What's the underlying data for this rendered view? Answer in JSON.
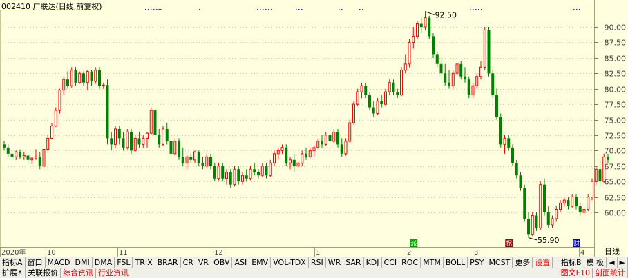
{
  "title": "002410 广联达(日线,前复权)",
  "chart_data": {
    "type": "candlestick",
    "ylim": [
      55.0,
      93.0
    ],
    "y_ticks": [
      "90.00",
      "87.50",
      "85.00",
      "82.50",
      "80.00",
      "77.50",
      "75.00",
      "72.50",
      "70.00",
      "67.50",
      "65.00",
      "62.50",
      "60.00"
    ],
    "x_tick_labels": [
      "2020年",
      "10",
      "11",
      "12",
      "1",
      "2",
      "3",
      "4"
    ],
    "annotations": {
      "high": "92.50",
      "low": "55.90"
    },
    "candles": [
      [
        71.0,
        71.6,
        70.0,
        70.5
      ],
      [
        70.5,
        71.0,
        69.0,
        69.5
      ],
      [
        69.5,
        70.0,
        68.5,
        69.0
      ],
      [
        69.0,
        70.0,
        68.5,
        69.8
      ],
      [
        69.8,
        70.2,
        68.7,
        69.0
      ],
      [
        69.0,
        69.8,
        68.5,
        69.2
      ],
      [
        69.2,
        69.5,
        68.0,
        68.5
      ],
      [
        68.5,
        69.0,
        67.8,
        68.8
      ],
      [
        68.8,
        70.2,
        68.5,
        69.0
      ],
      [
        69.0,
        69.8,
        67.0,
        67.5
      ],
      [
        67.5,
        70.5,
        67.2,
        70.2
      ],
      [
        70.2,
        72.5,
        70.0,
        72.0
      ],
      [
        72.0,
        74.5,
        71.8,
        74.0
      ],
      [
        74.0,
        77.0,
        73.8,
        76.5
      ],
      [
        76.5,
        80.0,
        76.0,
        79.8
      ],
      [
        79.8,
        82.0,
        79.0,
        81.5
      ],
      [
        81.5,
        82.8,
        80.0,
        80.5
      ],
      [
        80.5,
        83.5,
        80.2,
        83.0
      ],
      [
        83.0,
        83.5,
        80.5,
        81.0
      ],
      [
        81.0,
        82.8,
        80.8,
        82.5
      ],
      [
        82.5,
        82.8,
        80.5,
        81.0
      ],
      [
        81.0,
        83.0,
        79.8,
        82.8
      ],
      [
        82.8,
        83.0,
        80.5,
        81.2
      ],
      [
        81.2,
        83.5,
        80.8,
        83.0
      ],
      [
        83.0,
        83.5,
        80.0,
        80.5
      ],
      [
        80.5,
        81.0,
        80.0,
        80.6
      ],
      [
        80.6,
        81.5,
        71.0,
        72.0
      ],
      [
        72.0,
        73.0,
        70.0,
        71.0
      ],
      [
        71.0,
        74.0,
        70.5,
        73.5
      ],
      [
        73.5,
        74.0,
        71.0,
        72.0
      ],
      [
        72.0,
        73.0,
        70.0,
        70.5
      ],
      [
        70.5,
        73.5,
        70.2,
        73.0
      ],
      [
        73.0,
        73.5,
        69.5,
        70.0
      ],
      [
        70.0,
        72.5,
        69.8,
        72.0
      ],
      [
        72.0,
        73.0,
        70.5,
        71.0
      ],
      [
        71.0,
        72.5,
        70.5,
        72.0
      ],
      [
        72.0,
        73.0,
        70.5,
        72.8
      ],
      [
        72.8,
        77.0,
        72.5,
        76.5
      ],
      [
        76.5,
        76.8,
        72.0,
        72.5
      ],
      [
        72.5,
        73.5,
        70.5,
        71.0
      ],
      [
        71.0,
        74.0,
        70.8,
        73.5
      ],
      [
        73.5,
        74.5,
        71.0,
        71.5
      ],
      [
        71.5,
        72.0,
        69.0,
        69.5
      ],
      [
        69.5,
        72.0,
        69.2,
        71.5
      ],
      [
        71.5,
        72.0,
        68.5,
        69.0
      ],
      [
        69.0,
        70.5,
        67.5,
        68.0
      ],
      [
        68.0,
        69.5,
        67.0,
        69.0
      ],
      [
        69.0,
        69.5,
        68.0,
        68.5
      ],
      [
        68.5,
        70.0,
        68.0,
        69.8
      ],
      [
        69.8,
        70.0,
        67.5,
        68.0
      ],
      [
        68.0,
        69.0,
        67.0,
        67.5
      ],
      [
        67.5,
        69.5,
        67.2,
        69.0
      ],
      [
        69.0,
        69.5,
        67.0,
        67.5
      ],
      [
        67.5,
        68.0,
        65.0,
        65.5
      ],
      [
        65.5,
        68.0,
        65.2,
        67.5
      ],
      [
        67.5,
        68.0,
        65.0,
        65.5
      ],
      [
        65.5,
        67.0,
        64.5,
        66.5
      ],
      [
        66.5,
        67.0,
        64.0,
        64.5
      ],
      [
        64.5,
        67.5,
        64.2,
        67.0
      ],
      [
        67.0,
        67.5,
        64.5,
        65.0
      ],
      [
        65.0,
        66.5,
        64.5,
        66.0
      ],
      [
        66.0,
        67.0,
        65.0,
        65.5
      ],
      [
        65.5,
        67.5,
        65.2,
        67.0
      ],
      [
        67.0,
        68.0,
        66.0,
        66.5
      ],
      [
        66.5,
        67.0,
        65.5,
        66.0
      ],
      [
        66.0,
        68.0,
        65.8,
        67.5
      ],
      [
        67.5,
        68.0,
        65.5,
        66.0
      ],
      [
        66.0,
        68.5,
        65.8,
        68.0
      ],
      [
        68.0,
        70.0,
        67.5,
        69.5
      ],
      [
        69.5,
        70.5,
        68.5,
        70.0
      ],
      [
        70.0,
        71.0,
        69.5,
        70.5
      ],
      [
        70.5,
        71.0,
        67.5,
        68.0
      ],
      [
        68.0,
        69.0,
        67.0,
        68.5
      ],
      [
        68.5,
        69.5,
        66.5,
        67.5
      ],
      [
        67.5,
        69.0,
        67.0,
        68.0
      ],
      [
        68.0,
        70.0,
        67.5,
        69.5
      ],
      [
        69.5,
        70.5,
        68.5,
        69.0
      ],
      [
        69.0,
        70.5,
        68.8,
        70.0
      ],
      [
        70.0,
        71.0,
        69.0,
        70.5
      ],
      [
        70.5,
        72.0,
        70.2,
        71.5
      ],
      [
        71.5,
        72.5,
        70.5,
        71.0
      ],
      [
        71.0,
        73.0,
        70.8,
        72.5
      ],
      [
        72.5,
        73.0,
        71.0,
        71.5
      ],
      [
        71.5,
        73.5,
        71.2,
        73.0
      ],
      [
        73.0,
        73.5,
        70.5,
        71.0
      ],
      [
        71.0,
        72.0,
        69.0,
        69.5
      ],
      [
        69.5,
        72.0,
        69.2,
        71.5
      ],
      [
        71.5,
        75.0,
        71.2,
        74.5
      ],
      [
        74.5,
        78.0,
        74.2,
        77.5
      ],
      [
        77.5,
        80.0,
        77.2,
        79.5
      ],
      [
        79.5,
        81.0,
        78.5,
        80.5
      ],
      [
        80.5,
        81.0,
        78.5,
        79.0
      ],
      [
        79.0,
        79.5,
        76.5,
        77.0
      ],
      [
        77.0,
        78.0,
        75.5,
        76.0
      ],
      [
        76.0,
        78.5,
        75.8,
        78.0
      ],
      [
        78.0,
        79.0,
        77.0,
        77.5
      ],
      [
        77.5,
        80.0,
        77.2,
        79.5
      ],
      [
        79.5,
        81.5,
        79.0,
        81.0
      ],
      [
        81.0,
        81.5,
        79.0,
        79.5
      ],
      [
        79.5,
        80.0,
        78.5,
        79.0
      ],
      [
        79.0,
        83.5,
        78.8,
        83.0
      ],
      [
        83.0,
        85.5,
        82.5,
        84.0
      ],
      [
        84.0,
        88.0,
        83.5,
        87.5
      ],
      [
        87.5,
        90.0,
        86.5,
        88.5
      ],
      [
        88.5,
        91.0,
        88.0,
        90.5
      ],
      [
        90.5,
        91.5,
        89.0,
        90.0
      ],
      [
        90.0,
        92.5,
        89.5,
        91.5
      ],
      [
        91.5,
        91.8,
        88.0,
        88.5
      ],
      [
        88.5,
        89.0,
        85.0,
        85.5
      ],
      [
        85.5,
        86.0,
        83.5,
        84.0
      ],
      [
        84.0,
        85.0,
        82.0,
        82.5
      ],
      [
        82.5,
        84.0,
        80.5,
        81.0
      ],
      [
        81.0,
        83.0,
        80.0,
        80.5
      ],
      [
        80.5,
        83.0,
        80.0,
        82.5
      ],
      [
        82.5,
        84.5,
        82.0,
        84.0
      ],
      [
        84.0,
        84.5,
        81.5,
        82.0
      ],
      [
        82.0,
        83.5,
        81.0,
        81.5
      ],
      [
        81.5,
        82.0,
        78.5,
        79.0
      ],
      [
        79.0,
        81.0,
        78.5,
        80.5
      ],
      [
        80.5,
        82.5,
        80.0,
        82.0
      ],
      [
        82.0,
        84.5,
        81.5,
        83.5
      ],
      [
        83.5,
        90.0,
        83.0,
        89.5
      ],
      [
        89.5,
        90.0,
        82.0,
        82.5
      ],
      [
        82.5,
        83.0,
        78.5,
        79.0
      ],
      [
        79.0,
        80.0,
        75.0,
        75.5
      ],
      [
        75.5,
        76.0,
        70.5,
        71.0
      ],
      [
        71.0,
        72.5,
        69.5,
        72.0
      ],
      [
        72.0,
        72.5,
        70.0,
        70.5
      ],
      [
        70.5,
        71.0,
        67.5,
        68.0
      ],
      [
        68.0,
        68.5,
        65.5,
        66.0
      ],
      [
        66.0,
        66.5,
        63.5,
        64.0
      ],
      [
        64.0,
        64.5,
        58.5,
        59.0
      ],
      [
        59.0,
        60.0,
        55.9,
        56.5
      ],
      [
        56.5,
        60.0,
        56.2,
        59.5
      ],
      [
        59.5,
        60.0,
        57.0,
        57.5
      ],
      [
        57.5,
        65.0,
        57.2,
        64.5
      ],
      [
        64.5,
        65.5,
        59.5,
        60.0
      ],
      [
        60.0,
        61.0,
        57.5,
        58.0
      ],
      [
        58.0,
        59.5,
        57.5,
        59.0
      ],
      [
        59.0,
        61.0,
        58.5,
        60.5
      ],
      [
        60.5,
        62.0,
        60.0,
        61.5
      ],
      [
        61.5,
        62.5,
        61.0,
        62.0
      ],
      [
        62.0,
        62.5,
        60.5,
        61.0
      ],
      [
        61.0,
        63.0,
        60.8,
        62.5
      ],
      [
        62.5,
        63.0,
        60.5,
        61.0
      ],
      [
        61.0,
        61.5,
        59.5,
        60.0
      ],
      [
        60.0,
        61.0,
        59.5,
        60.5
      ],
      [
        60.5,
        63.0,
        60.2,
        62.5
      ],
      [
        62.5,
        65.5,
        62.0,
        65.0
      ],
      [
        65.0,
        67.5,
        64.5,
        67.0
      ],
      [
        67.0,
        68.5,
        64.5,
        65.0
      ],
      [
        65.0,
        69.5,
        64.8,
        69.0
      ],
      [
        69.0,
        69.5,
        68.0,
        68.5
      ]
    ],
    "markers": [
      {
        "label": "派",
        "index": 103,
        "color": "#00a000"
      },
      {
        "label": "拐",
        "index": 127,
        "color": "#a00000"
      },
      {
        "label": "财",
        "index": 144,
        "color": "#0000c0"
      }
    ]
  },
  "indicator_tabs": [
    "指标A",
    "窗口",
    "MACD",
    "DMI",
    "DMA",
    "FSL",
    "TRIX",
    "BRAR",
    "CR",
    "VR",
    "OBV",
    "ASI",
    "EMV",
    "VOL-TDX",
    "RSI",
    "WR",
    "SAR",
    "KDJ",
    "CCI",
    "ROC",
    "MTM",
    "BOLL",
    "PSY",
    "MCST",
    "更多",
    "设置"
  ],
  "indicator_tabs_right": [
    "指标B",
    "模 板"
  ],
  "bottom_tabs": [
    "扩展∧",
    "关联报价",
    "综合资讯",
    "行业资讯"
  ],
  "bottom_right": [
    "图文F10",
    "剖面统计"
  ],
  "period_label": "日线",
  "nav_arrows": [
    "◄",
    "►"
  ],
  "colors": {
    "up": "#ff0000",
    "down": "#008000",
    "background": "#ffffe0",
    "grid": "#d0d090"
  }
}
